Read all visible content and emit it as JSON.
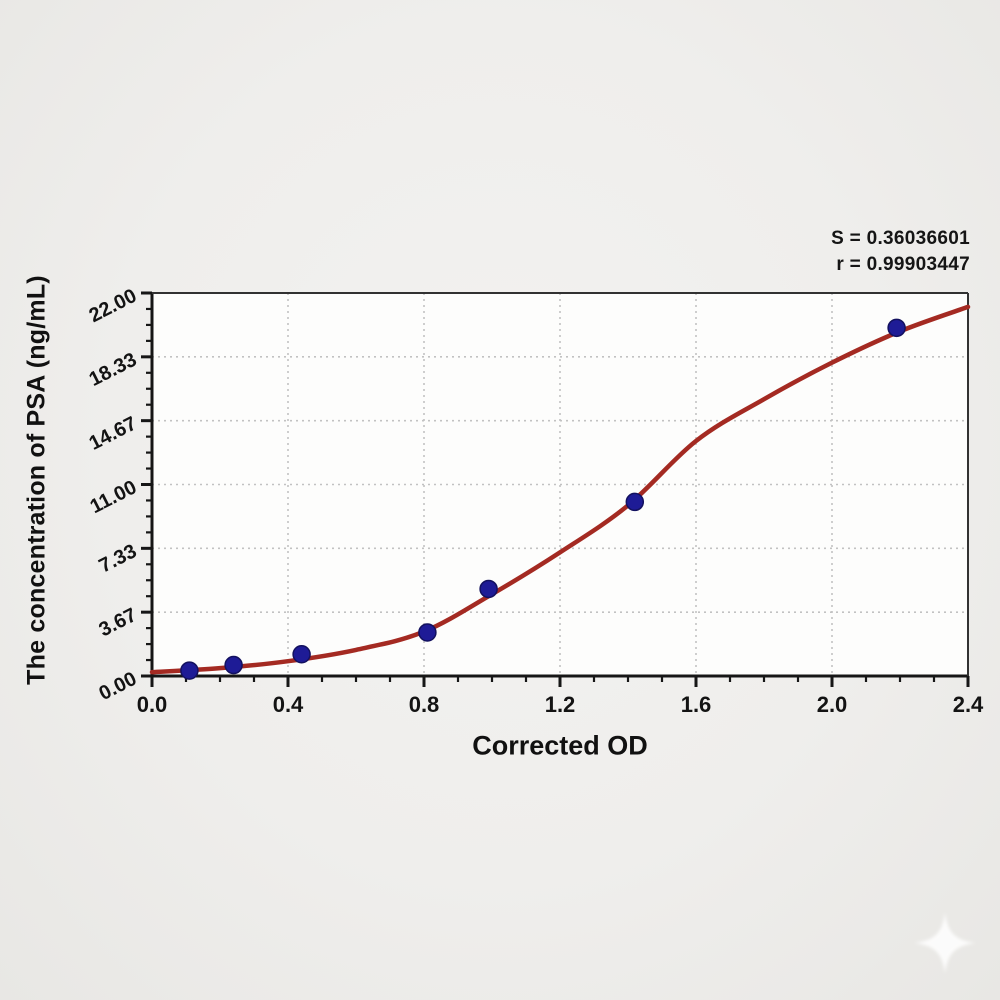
{
  "annotation": {
    "line1": "S = 0.36036601",
    "line2": "r = 0.99903447"
  },
  "chart_data": {
    "type": "scatter",
    "subtype": "ELISA standard curve with 4PL fitted line",
    "title": "",
    "xlabel": "Corrected OD",
    "ylabel": "The concentration of PSA (ng/mL)",
    "xlim": [
      0.0,
      2.4
    ],
    "ylim": [
      0.0,
      22.0
    ],
    "x_ticks": [
      0.0,
      0.4,
      0.8,
      1.2,
      1.6,
      2.0,
      2.4
    ],
    "x_tick_labels": [
      "0.0",
      "0.4",
      "0.8",
      "1.2",
      "1.6",
      "2.0",
      "2.4"
    ],
    "x_minor_tick_step": 0.1,
    "y_ticks": [
      0.0,
      3.6667,
      7.3333,
      11.0,
      14.6667,
      18.3333,
      22.0
    ],
    "y_tick_labels": [
      "0.00",
      "3.67",
      "7.33",
      "11.00",
      "14.67",
      "18.33",
      "22.00"
    ],
    "y_minor_divisions": 4,
    "grid": {
      "style": "dotted",
      "at": "interior-major-ticks",
      "on": true
    },
    "legend": "none",
    "series": [
      {
        "name": "standard-points",
        "type": "scatter",
        "x": [
          0.11,
          0.24,
          0.44,
          0.81,
          0.99,
          1.42,
          2.19
        ],
        "y": [
          0.31,
          0.63,
          1.25,
          2.5,
          5.0,
          10.0,
          20.0
        ]
      },
      {
        "name": "fitted-curve",
        "type": "line",
        "points": [
          [
            0.0,
            0.22
          ],
          [
            0.2,
            0.45
          ],
          [
            0.4,
            0.85
          ],
          [
            0.6,
            1.5
          ],
          [
            0.8,
            2.55
          ],
          [
            1.0,
            4.7
          ],
          [
            1.2,
            7.1
          ],
          [
            1.4,
            9.8
          ],
          [
            1.6,
            13.5
          ],
          [
            1.8,
            15.9
          ],
          [
            2.0,
            18.0
          ],
          [
            2.2,
            19.8
          ],
          [
            2.4,
            21.2
          ]
        ]
      }
    ],
    "fit_stats": {
      "S": "0.36036601",
      "r": "0.99903447"
    }
  },
  "colors": {
    "curve": "#a42a22",
    "point_fill": "#1e1b96",
    "point_edge": "#13115f",
    "grid": "#c2c2c2",
    "axis": "#161616",
    "frame_thin": "#323232",
    "text": "#131313",
    "plot_bg": "#fdfdfc",
    "watermark": "#ffffff"
  },
  "watermark": {
    "icon": "sparkle"
  }
}
